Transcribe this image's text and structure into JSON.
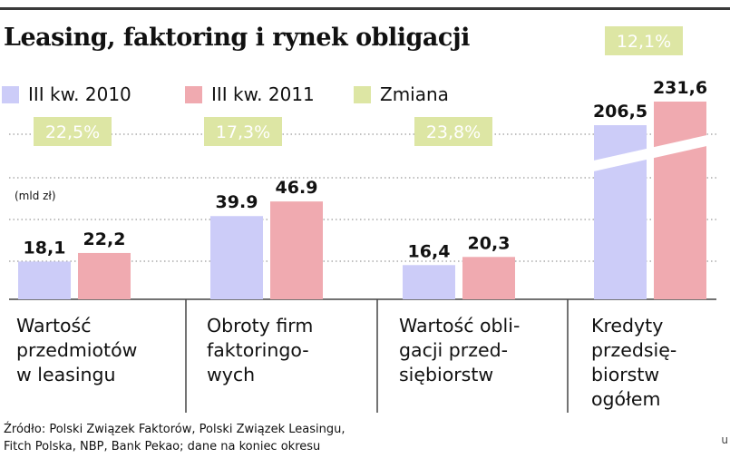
{
  "title": "Leasing, faktoring i rynek obligacji",
  "colors": {
    "series_2010": "#ccccf8",
    "series_2011": "#f0aab0",
    "change_badge": "#dde6a4",
    "grid": "#9a9a9a",
    "axis": "#444444"
  },
  "legend": [
    {
      "label": "III kw. 2010",
      "color": "#ccccf8"
    },
    {
      "label": "III kw. 2011",
      "color": "#f0aab0"
    },
    {
      "label": "Zmiana",
      "color": "#dde6a4"
    }
  ],
  "categories": [
    {
      "label": "Wartość\nprzedmiotów\nw leasingu"
    },
    {
      "label": "Obroty firm\nfaktoringo-\nwych"
    },
    {
      "label": "Wartość obli-\ngacji przed-\nsiębiorstw"
    },
    {
      "label": "Kredyty\nprzedsię-\nbiorstw\nogółem"
    }
  ],
  "chart_data": {
    "type": "bar",
    "title": "Leasing, faktoring i rynek obligacji",
    "unit_label": "(mld zł)",
    "categories": [
      "Wartość przedmiotów w leasingu",
      "Obroty firm faktoringowych",
      "Wartość obligacji przedsiębiorstw",
      "Kredyty przedsiębiorstw ogółem"
    ],
    "series": [
      {
        "name": "III kw. 2010",
        "values": [
          18.1,
          39.9,
          16.4,
          206.5
        ],
        "labels": [
          "18,1",
          "39.9",
          "16,4",
          "206,5"
        ]
      },
      {
        "name": "III kw. 2011",
        "values": [
          22.2,
          46.9,
          20.3,
          231.6
        ],
        "labels": [
          "22,2",
          "46.9",
          "20,3",
          "231,6"
        ]
      }
    ],
    "changes": [
      "22,5%",
      "17,3%",
      "23,8%",
      "12,1%"
    ],
    "broken_axis_category": "Kredyty przedsiębiorstw ogółem",
    "grid": true,
    "legend_position": "top-left"
  },
  "source": "Źródło: Polski Związek Faktorów, Polski Związek Leasingu,\nFitch Polska, NBP, Bank Pekao; dane na koniec okresu",
  "corner_mark": "u"
}
